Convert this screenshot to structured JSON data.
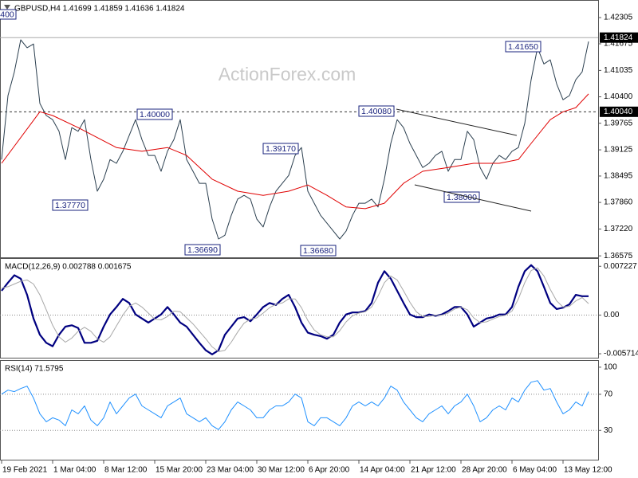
{
  "chart_data": [
    {
      "type": "line",
      "title": "GBPUSD,H4 1.41699 1.41859 1.41636 1.41824",
      "watermark": "ActionForex.com",
      "xlim": [
        -0.25,
        93.5
      ],
      "ylim": [
        1.3654,
        1.4269
      ],
      "yticks": [
        1.42305,
        1.41675,
        1.41035,
        {
          "value": 1.404,
          "label": "1.40400"
        },
        1.39765,
        1.39125,
        1.38495,
        {
          "value": 1.3786,
          "label": "1.37860"
        },
        {
          "value": 1.3722,
          "label": "1.37220"
        },
        1.36575
      ],
      "price_labels": [
        1.41824,
        {
          "value": 1.4004,
          "label": "1.40040"
        }
      ],
      "annotations": [
        "400",
        "1.40000",
        "1.37770",
        "1.36690",
        "1.39170",
        "1.36680",
        "1.40080",
        "1.38000",
        "1.41650"
      ],
      "series": [
        {
          "color": "#2b3f4f",
          "values": [
            1.3889,
            1.4043,
            1.41,
            1.4177,
            1.4158,
            1.4167,
            1.4024,
            1.3995,
            1.3985,
            1.3957,
            1.3889,
            1.3966,
            1.3957,
            1.3985,
            1.3889,
            1.3813,
            1.3842,
            1.3889,
            1.388,
            1.3909,
            1.3947,
            1.3985,
            1.3937,
            1.3899,
            1.3899,
            1.3861,
            1.3909,
            1.3937,
            1.3985,
            1.3889,
            1.3861,
            1.3832,
            1.3832,
            1.3746,
            1.3698,
            1.3707,
            1.3755,
            1.3794,
            1.3803,
            1.3794,
            1.3746,
            1.3727,
            1.3775,
            1.3813,
            1.3832,
            1.3851,
            1.3899,
            1.3918,
            1.3813,
            1.3784,
            1.3755,
            1.3736,
            1.3717,
            1.3698,
            1.3717,
            1.3755,
            1.3784,
            1.3784,
            1.3794,
            1.3775,
            1.3842,
            1.3928,
            1.3985,
            1.3966,
            1.3928,
            1.3899,
            1.387,
            1.388,
            1.3899,
            1.3909,
            1.3861,
            1.3889,
            1.3889,
            1.3957,
            1.3937,
            1.387,
            1.3842,
            1.388,
            1.3899,
            1.3889,
            1.3909,
            1.3918,
            1.3976,
            1.4081,
            1.4158,
            1.4119,
            1.4129,
            1.4071,
            1.4033,
            1.4043,
            1.4081,
            1.41,
            1.4173
          ]
        },
        {
          "color": "#e00000",
          "x": [
            0,
            6,
            8,
            12,
            18,
            22,
            26,
            29,
            33,
            37,
            41,
            45,
            48,
            51,
            54,
            57,
            60,
            63,
            66,
            70,
            74,
            78,
            81,
            83,
            86,
            88,
            90,
            92
          ],
          "values": [
            1.388,
            1.4004,
            1.3995,
            1.3966,
            1.3918,
            1.3909,
            1.3918,
            1.3899,
            1.3842,
            1.3813,
            1.3803,
            1.3813,
            1.3828,
            1.3803,
            1.3775,
            1.3771,
            1.3784,
            1.3832,
            1.3861,
            1.387,
            1.388,
            1.388,
            1.3889,
            1.3928,
            1.3985,
            1.4004,
            1.4014,
            1.4047
          ]
        }
      ]
    },
    {
      "type": "line",
      "title": "MACD(12,26,9) 0.002788 0.001675",
      "xlim": [
        -0.25,
        93.5
      ],
      "ylim": [
        -0.0063,
        0.0082
      ],
      "yticks": [
        0.007227,
        {
          "value": 0,
          "label": "0.00"
        },
        -0.005714
      ],
      "level_lines": [
        0
      ],
      "series": [
        {
          "color": "#000080",
          "values": [
            0.0036,
            0.0048,
            0.0059,
            0.0054,
            0.003,
            -0.0005,
            -0.0029,
            -0.0041,
            -0.0046,
            -0.0029,
            -0.0017,
            -0.0015,
            -0.0019,
            -0.0041,
            -0.0041,
            -0.0038,
            -0.0017,
            0.0001,
            0.0012,
            0.0024,
            0.0018,
            0.0001,
            -0.0005,
            -0.0011,
            -0.0005,
            0.0001,
            0.0012,
            0.0001,
            -0.0011,
            -0.0017,
            -0.0029,
            -0.0041,
            -0.0052,
            -0.0058,
            -0.0052,
            -0.0029,
            -0.0017,
            -0.0005,
            -0.0003,
            -0.0009,
            0.0001,
            0.0012,
            0.0018,
            0.0015,
            0.0024,
            0.003,
            0.0012,
            -0.0011,
            -0.0026,
            -0.0029,
            -0.0031,
            -0.0035,
            -0.0029,
            -0.0011,
            0.0001,
            0.0004,
            0.0004,
            0.0006,
            0.0018,
            0.0048,
            0.0065,
            0.0054,
            0.0036,
            0.0018,
            0.0001,
            -0.0003,
            -0.0003,
            0.0001,
            -0.0001,
            0.0001,
            0.0006,
            0.0012,
            0.0012,
            0.0001,
            -0.0017,
            -0.0011,
            -0.0005,
            -0.0003,
            0.0001,
            0.0001,
            0.0012,
            0.0042,
            0.0065,
            0.0074,
            0.0065,
            0.0042,
            0.0018,
            0.0009,
            0.0011,
            0.0016,
            0.003,
            0.0028,
            0.0028
          ]
        },
        {
          "color": "#a8a8a8",
          "values": [
            0.004,
            0.0042,
            0.0046,
            0.005,
            0.0052,
            0.0046,
            0.003,
            0.0008,
            -0.0015,
            -0.0032,
            -0.004,
            -0.0034,
            -0.0024,
            -0.0018,
            -0.0024,
            -0.0035,
            -0.004,
            -0.0032,
            -0.0016,
            0.0,
            0.0013,
            0.0018,
            0.0012,
            0.0003,
            -0.0006,
            -0.0007,
            -0.0002,
            0.0006,
            0.0005,
            -0.0004,
            -0.0013,
            -0.0024,
            -0.0035,
            -0.0047,
            -0.0054,
            -0.0052,
            -0.004,
            -0.0025,
            -0.0012,
            -0.0006,
            -0.0004,
            0.0003,
            0.0011,
            0.0016,
            0.0018,
            0.0024,
            0.0024,
            0.0011,
            -0.0008,
            -0.0022,
            -0.0029,
            -0.0032,
            -0.0032,
            -0.0023,
            -0.001,
            -0.0001,
            0.0003,
            0.0005,
            0.0012,
            0.0028,
            0.0048,
            0.0058,
            0.0052,
            0.0036,
            0.0019,
            0.0005,
            -0.0002,
            -0.0002,
            0.0,
            0.0,
            0.0003,
            0.0009,
            0.0012,
            0.0008,
            -0.0004,
            -0.0011,
            -0.001,
            -0.0006,
            -0.0002,
            0.0,
            0.0006,
            0.0024,
            0.0048,
            0.0066,
            0.007,
            0.0058,
            0.0038,
            0.0021,
            0.0012,
            0.0013,
            0.0021,
            0.0026,
            0.0017
          ]
        }
      ]
    },
    {
      "type": "line",
      "title": "RSI(14) 71.5795",
      "xlim": [
        -0.25,
        93.5
      ],
      "ylim": [
        -2.4,
        106.1
      ],
      "yticks": [
        100,
        70,
        30
      ],
      "level_lines": [
        70,
        30
      ],
      "xticks": [
        {
          "value": 0,
          "label": "19 Feb 2021"
        },
        {
          "value": 8,
          "label": "1 Mar 04:00"
        },
        {
          "value": 16,
          "label": "8 Mar 12:00"
        },
        {
          "value": 24,
          "label": "15 Mar 20:00"
        },
        {
          "value": 32,
          "label": "23 Mar 04:00"
        },
        {
          "value": 40,
          "label": "30 Mar 12:00"
        },
        {
          "value": 48,
          "label": "6 Apr 20:00"
        },
        {
          "value": 56,
          "label": "14 Apr 04:00"
        },
        {
          "value": 64,
          "label": "21 Apr 12:00"
        },
        {
          "value": 72,
          "label": "28 Apr 20:00"
        },
        {
          "value": 80,
          "label": "6 May 04:00"
        },
        {
          "value": 88,
          "label": "13 May 12:00"
        }
      ],
      "series": [
        {
          "color": "#1e90ff",
          "values": [
            70.2,
            74.6,
            72.9,
            76.4,
            79.0,
            65.9,
            48.4,
            39.6,
            44.0,
            41.4,
            35.2,
            52.7,
            48.4,
            57.1,
            41.4,
            35.2,
            44.0,
            61.5,
            48.4,
            57.1,
            65.9,
            70.2,
            57.1,
            52.7,
            48.4,
            44.0,
            57.1,
            61.5,
            65.9,
            48.4,
            44.0,
            39.6,
            44.0,
            35.2,
            30.9,
            39.6,
            52.7,
            61.5,
            57.1,
            52.7,
            44.0,
            44.0,
            52.7,
            57.1,
            57.1,
            61.5,
            70.2,
            65.9,
            39.6,
            35.2,
            44.0,
            44.0,
            39.6,
            35.2,
            44.0,
            57.1,
            61.5,
            57.1,
            61.5,
            57.1,
            65.9,
            79.0,
            74.6,
            61.5,
            52.7,
            44.0,
            39.6,
            48.4,
            52.7,
            57.1,
            48.4,
            57.1,
            61.5,
            70.2,
            57.1,
            39.6,
            44.0,
            52.7,
            57.1,
            52.7,
            65.9,
            61.5,
            74.6,
            83.4,
            85.1,
            74.6,
            76.4,
            61.5,
            48.4,
            52.7,
            61.5,
            57.1,
            72.9
          ]
        }
      ]
    }
  ]
}
